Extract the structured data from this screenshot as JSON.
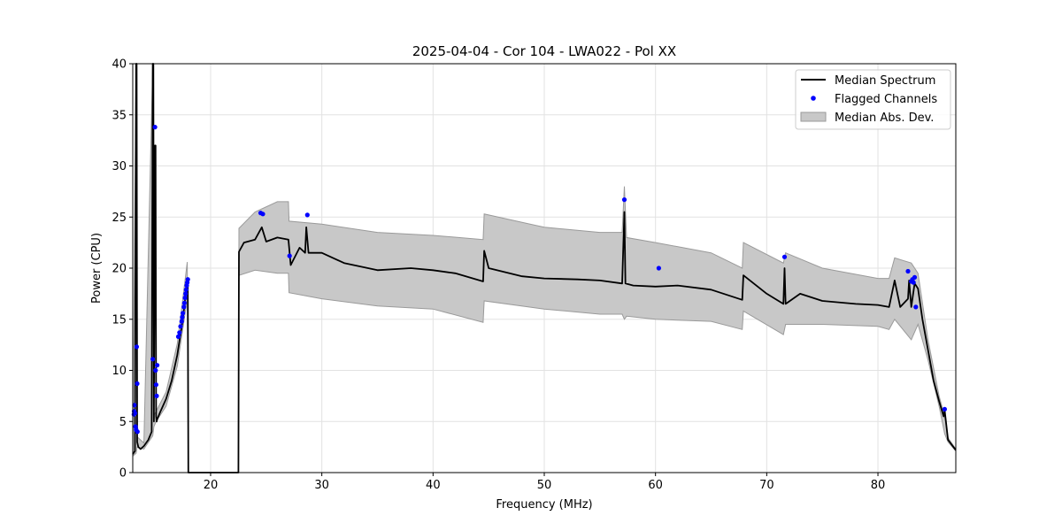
{
  "chart_data": {
    "type": "line",
    "title": "2025-04-04 - Cor 104 - LWA022 - Pol XX",
    "xlabel": "Frequency (MHz)",
    "ylabel": "Power (CPU)",
    "xlim": [
      13,
      87
    ],
    "ylim": [
      0,
      40
    ],
    "xticks": [
      20,
      30,
      40,
      50,
      60,
      70,
      80
    ],
    "yticks": [
      0,
      5,
      10,
      15,
      20,
      25,
      30,
      35,
      40
    ],
    "grid": true,
    "legend_position": "top-right",
    "legend": [
      "Median Spectrum",
      "Flagged Channels",
      "Median Abs. Dev."
    ],
    "colors": {
      "line": "#000000",
      "flagged": "#0000ff",
      "band_fill": "#c8c8c8",
      "band_edge": "#9a9a9a"
    },
    "series": [
      {
        "name": "Median Spectrum",
        "x": [
          13.0,
          13.2,
          13.3,
          13.35,
          13.4,
          13.5,
          13.7,
          14.0,
          14.4,
          14.7,
          14.8,
          14.85,
          14.9,
          15.0,
          15.05,
          15.1,
          15.15,
          15.2,
          15.5,
          16.0,
          16.5,
          17.0,
          17.5,
          17.9,
          17.95,
          18.0,
          22.5,
          22.55,
          23.0,
          24.0,
          24.6,
          25.0,
          26.0,
          27.0,
          27.2,
          28.0,
          28.5,
          28.6,
          28.8,
          30.0,
          32.0,
          35.0,
          38.0,
          40.0,
          42.0,
          44.5,
          44.6,
          45.0,
          48.0,
          50.0,
          53.0,
          55.0,
          57.0,
          57.2,
          57.3,
          58.0,
          60.0,
          62.0,
          65.0,
          67.8,
          67.9,
          70.0,
          71.5,
          71.6,
          71.7,
          73.0,
          75.0,
          78.0,
          80.0,
          81.0,
          81.5,
          82.0,
          82.7,
          82.8,
          83.0,
          83.3,
          83.6,
          84.0,
          84.5,
          85.0,
          85.5,
          85.9,
          86.0,
          86.3,
          87.0
        ],
        "y": [
          1.8,
          2.1,
          40.0,
          40.0,
          3.0,
          2.5,
          2.3,
          2.6,
          3.2,
          4.0,
          40.0,
          40.0,
          5.0,
          32.0,
          32.0,
          5.5,
          5.0,
          5.2,
          6.0,
          7.2,
          9.0,
          11.5,
          15.0,
          18.8,
          18.8,
          0.0,
          0.0,
          21.6,
          22.5,
          22.8,
          24.0,
          22.6,
          23.0,
          22.8,
          20.3,
          22.0,
          21.5,
          24.0,
          21.5,
          21.5,
          20.5,
          19.8,
          20.0,
          19.8,
          19.5,
          18.7,
          21.7,
          20.0,
          19.2,
          19.0,
          18.9,
          18.8,
          18.5,
          25.5,
          18.5,
          18.3,
          18.2,
          18.3,
          17.9,
          16.9,
          19.3,
          17.5,
          16.5,
          20.0,
          16.5,
          17.5,
          16.8,
          16.5,
          16.4,
          16.2,
          18.8,
          16.2,
          17.0,
          18.8,
          16.2,
          18.5,
          18.0,
          15.0,
          12.0,
          9.0,
          7.0,
          5.5,
          6.1,
          3.2,
          2.2
        ]
      },
      {
        "name": "Flagged Channels",
        "points": [
          [
            13.1,
            5.7
          ],
          [
            13.12,
            6.0
          ],
          [
            13.15,
            6.6
          ],
          [
            13.2,
            5.8
          ],
          [
            13.25,
            4.5
          ],
          [
            13.3,
            4.2
          ],
          [
            13.35,
            12.3
          ],
          [
            13.4,
            8.7
          ],
          [
            13.42,
            4.0
          ],
          [
            14.8,
            11.1
          ],
          [
            15.0,
            33.8
          ],
          [
            15.05,
            10.0
          ],
          [
            15.1,
            8.6
          ],
          [
            15.15,
            7.5
          ],
          [
            15.2,
            10.5
          ],
          [
            17.1,
            13.3
          ],
          [
            17.2,
            13.7
          ],
          [
            17.3,
            14.3
          ],
          [
            17.4,
            14.8
          ],
          [
            17.45,
            15.2
          ],
          [
            17.5,
            15.6
          ],
          [
            17.6,
            16.2
          ],
          [
            17.65,
            16.6
          ],
          [
            17.7,
            17.1
          ],
          [
            17.75,
            17.5
          ],
          [
            17.8,
            17.9
          ],
          [
            17.85,
            18.3
          ],
          [
            17.9,
            18.6
          ],
          [
            17.95,
            18.9
          ],
          [
            24.5,
            25.4
          ],
          [
            24.7,
            25.3
          ],
          [
            27.1,
            21.2
          ],
          [
            28.7,
            25.2
          ],
          [
            57.2,
            26.7
          ],
          [
            60.3,
            20.0
          ],
          [
            71.6,
            21.1
          ],
          [
            82.7,
            19.7
          ],
          [
            83.0,
            18.7
          ],
          [
            83.1,
            18.9
          ],
          [
            83.2,
            18.6
          ],
          [
            83.3,
            19.1
          ],
          [
            83.4,
            16.2
          ],
          [
            86.0,
            6.2
          ]
        ]
      },
      {
        "name": "Median Abs. Dev.",
        "x": [
          13.0,
          13.3,
          13.4,
          14.0,
          14.8,
          14.9,
          15.1,
          16.0,
          17.0,
          17.9,
          18.0,
          22.5,
          22.55,
          24.0,
          26.0,
          27.0,
          27.05,
          30.0,
          35.0,
          40.0,
          44.5,
          44.6,
          50.0,
          55.0,
          57.0,
          57.2,
          57.4,
          60.0,
          65.0,
          67.8,
          67.9,
          71.5,
          71.7,
          75.0,
          80.0,
          81.0,
          81.5,
          83.0,
          83.6,
          84.5,
          85.5,
          86.0,
          86.3,
          87.0
        ],
        "upper": [
          2.0,
          40.0,
          3.5,
          2.9,
          40.0,
          5.6,
          6.0,
          7.9,
          12.6,
          20.6,
          0.0,
          0.0,
          23.9,
          25.5,
          26.5,
          26.5,
          24.6,
          24.3,
          23.5,
          23.2,
          22.8,
          25.3,
          24.0,
          23.5,
          23.5,
          28.0,
          23.0,
          22.5,
          21.5,
          20.0,
          22.5,
          20.5,
          21.5,
          20.0,
          19.0,
          19.0,
          21.0,
          20.5,
          19.5,
          13.0,
          7.5,
          5.5,
          3.4,
          2.3
        ],
        "lower": [
          1.6,
          1.9,
          2.5,
          2.3,
          3.6,
          4.5,
          5.0,
          6.5,
          10.4,
          17.0,
          0.0,
          0.0,
          19.3,
          19.8,
          19.5,
          19.5,
          17.6,
          17.0,
          16.3,
          16.0,
          14.7,
          16.8,
          16.0,
          15.5,
          15.5,
          15.0,
          15.3,
          15.0,
          14.8,
          14.0,
          15.8,
          13.5,
          14.5,
          14.5,
          14.3,
          14.0,
          15.0,
          13.0,
          14.5,
          11.0,
          6.5,
          3.8,
          3.0,
          2.1
        ]
      }
    ]
  }
}
